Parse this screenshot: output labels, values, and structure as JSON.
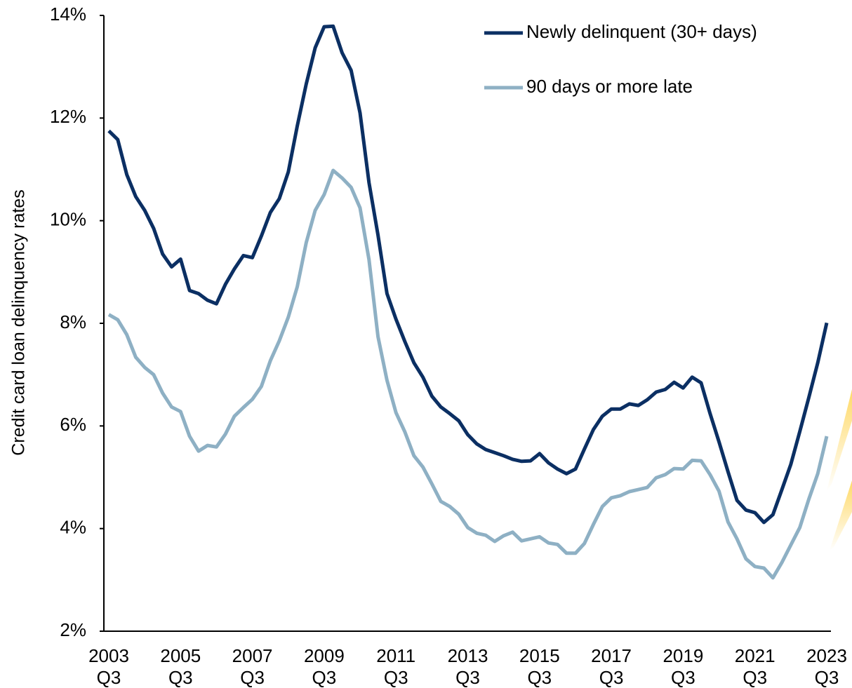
{
  "chart_data": {
    "type": "line",
    "y_label": "Credit card loan delinquency rates",
    "categories": [
      "2003 Q3",
      null,
      null,
      null,
      null,
      null,
      null,
      null,
      "2005 Q3",
      null,
      null,
      null,
      null,
      null,
      null,
      null,
      "2007 Q3",
      null,
      null,
      null,
      null,
      null,
      null,
      null,
      "2009 Q3",
      null,
      null,
      null,
      null,
      null,
      null,
      null,
      "2011 Q3",
      null,
      null,
      null,
      null,
      null,
      null,
      null,
      "2013 Q3",
      null,
      null,
      null,
      null,
      null,
      null,
      null,
      "2015 Q3",
      null,
      null,
      null,
      null,
      null,
      null,
      null,
      "2017 Q3",
      null,
      null,
      null,
      null,
      null,
      null,
      null,
      "2019 Q3",
      null,
      null,
      null,
      null,
      null,
      null,
      null,
      "2021 Q3",
      null,
      null,
      null,
      null,
      null,
      null,
      null,
      "2023 Q3"
    ],
    "series": [
      {
        "name": "Newly delinquent (30+ days)",
        "color": "#0b2f63",
        "values": [
          11.75,
          11.58,
          10.9,
          10.47,
          10.2,
          9.85,
          9.35,
          9.1,
          9.25,
          8.64,
          8.58,
          8.45,
          8.38,
          8.76,
          9.06,
          9.32,
          9.28,
          9.7,
          10.16,
          10.43,
          10.95,
          11.84,
          12.66,
          13.37,
          13.78,
          13.79,
          13.27,
          12.93,
          12.1,
          10.74,
          9.72,
          8.58,
          8.08,
          7.64,
          7.23,
          6.95,
          6.58,
          6.37,
          6.24,
          6.1,
          5.83,
          5.65,
          5.54,
          5.48,
          5.42,
          5.35,
          5.31,
          5.32,
          5.46,
          5.28,
          5.16,
          5.07,
          5.16,
          5.55,
          5.93,
          6.19,
          6.33,
          6.33,
          6.43,
          6.4,
          6.51,
          6.66,
          6.71,
          6.85,
          6.74,
          6.95,
          6.84,
          6.24,
          5.69,
          5.11,
          4.55,
          4.36,
          4.31,
          4.12,
          4.27,
          4.76,
          5.25,
          5.89,
          6.55,
          7.23,
          8.01
        ]
      },
      {
        "name": "90 days or more late",
        "color": "#8eb0c4",
        "values": [
          8.17,
          8.07,
          7.78,
          7.34,
          7.14,
          7.0,
          6.64,
          6.37,
          6.28,
          5.8,
          5.51,
          5.62,
          5.59,
          5.84,
          6.19,
          6.36,
          6.52,
          6.77,
          7.27,
          7.66,
          8.12,
          8.71,
          9.57,
          10.2,
          10.51,
          10.98,
          10.83,
          10.65,
          10.25,
          9.24,
          7.74,
          6.89,
          6.26,
          5.88,
          5.42,
          5.2,
          4.87,
          4.53,
          4.43,
          4.28,
          4.02,
          3.91,
          3.87,
          3.75,
          3.86,
          3.93,
          3.76,
          3.8,
          3.84,
          3.72,
          3.69,
          3.52,
          3.52,
          3.71,
          4.08,
          4.43,
          4.6,
          4.64,
          4.72,
          4.76,
          4.8,
          4.99,
          5.05,
          5.17,
          5.16,
          5.33,
          5.32,
          5.05,
          4.73,
          4.13,
          3.8,
          3.41,
          3.26,
          3.23,
          3.04,
          3.34,
          3.68,
          4.02,
          4.57,
          5.07,
          5.8
        ]
      }
    ],
    "ylim": [
      2,
      14
    ],
    "yticks": [
      {
        "value": 2,
        "label": "2%"
      },
      {
        "value": 4,
        "label": "4%"
      },
      {
        "value": 6,
        "label": "6%"
      },
      {
        "value": 8,
        "label": "8%"
      },
      {
        "value": 10,
        "label": "10%"
      },
      {
        "value": 12,
        "label": "12%"
      },
      {
        "value": 14,
        "label": "14%"
      }
    ],
    "grid": false,
    "legend": "top-right"
  }
}
